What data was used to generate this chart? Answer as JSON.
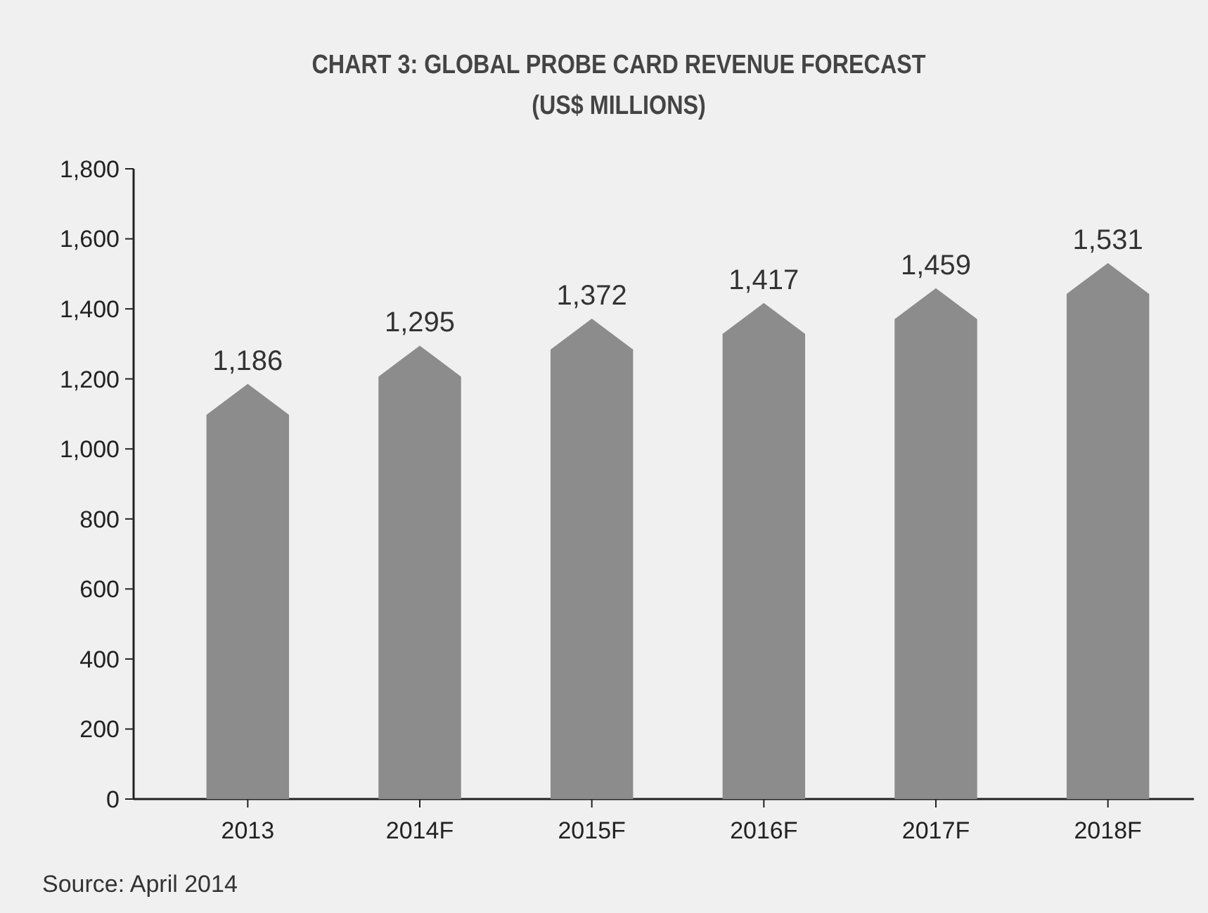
{
  "chart_data": {
    "type": "bar",
    "title": "CHART 3: GLOBAL PROBE CARD REVENUE FORECAST",
    "subtitle": "(US$ MILLIONS)",
    "categories": [
      "2013",
      "2014F",
      "2015F",
      "2016F",
      "2017F",
      "2018F"
    ],
    "values": [
      1186,
      1295,
      1372,
      1417,
      1459,
      1531
    ],
    "color": "#8c8c8c",
    "value_labels": [
      "1,186",
      "1,295",
      "1,372",
      "1,417",
      "1,459",
      "1,531"
    ],
    "ylim": [
      0,
      1800
    ],
    "yticks": [
      {
        "value": 0,
        "label": "0"
      },
      {
        "value": 200,
        "label": "200"
      },
      {
        "value": 400,
        "label": "400"
      },
      {
        "value": 600,
        "label": "600"
      },
      {
        "value": 800,
        "label": "800"
      },
      {
        "value": 1000,
        "label": "1,000"
      },
      {
        "value": 1200,
        "label": "1,200"
      },
      {
        "value": 1400,
        "label": "1,400"
      },
      {
        "value": 1600,
        "label": "1,600"
      },
      {
        "value": 1800,
        "label": "1,800"
      }
    ],
    "grid": false,
    "annotations": [
      "Source: April 2014"
    ]
  }
}
